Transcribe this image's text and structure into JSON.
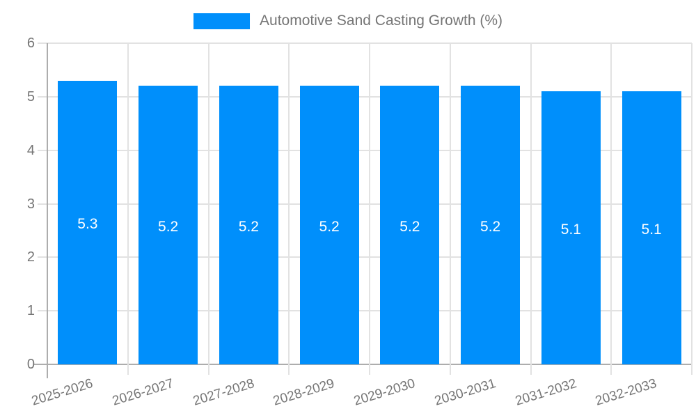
{
  "chart_data": {
    "type": "bar",
    "title": "Automotive Sand Casting Growth (%)",
    "legend_position": "top",
    "categories": [
      "2025-2026",
      "2026-2027",
      "2027-2028",
      "2028-2029",
      "2029-2030",
      "2030-2031",
      "2031-2032",
      "2032-2033"
    ],
    "series": [
      {
        "name": "Automotive Sand Casting Growth (%)",
        "values": [
          5.3,
          5.2,
          5.2,
          5.2,
          5.2,
          5.2,
          5.1,
          5.1
        ]
      }
    ],
    "value_labels": [
      "5.3",
      "5.2",
      "5.2",
      "5.2",
      "5.2",
      "5.2",
      "5.1",
      "5.1"
    ],
    "xlabel": "",
    "ylabel": "",
    "ylim": [
      0,
      6
    ],
    "yticks": [
      "0",
      "1",
      "2",
      "3",
      "4",
      "5",
      "6"
    ],
    "grid": true,
    "colors": {
      "bar": "#008FFB",
      "value_label": "#ffffff",
      "axis_text": "#757575",
      "grid_line": "#e2e2e2",
      "axis_line": "#adadad"
    }
  }
}
